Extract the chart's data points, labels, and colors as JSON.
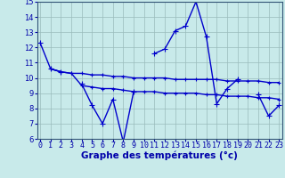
{
  "title": "Graphe des températures (°c)",
  "x_labels": [
    "0",
    "1",
    "2",
    "3",
    "4",
    "5",
    "6",
    "7",
    "8",
    "9",
    "10",
    "11",
    "12",
    "13",
    "14",
    "15",
    "16",
    "17",
    "18",
    "19",
    "20",
    "21",
    "22",
    "23"
  ],
  "line1": [
    12.3,
    10.6,
    10.4,
    null,
    9.6,
    8.2,
    7.0,
    8.6,
    5.8,
    9.1,
    null,
    11.6,
    11.9,
    13.1,
    13.4,
    15.0,
    12.7,
    8.3,
    9.3,
    9.9,
    null,
    8.9,
    7.5,
    8.2
  ],
  "line2": [
    null,
    10.6,
    10.4,
    10.3,
    10.3,
    10.2,
    10.2,
    10.1,
    10.1,
    10.0,
    10.0,
    10.0,
    10.0,
    9.9,
    9.9,
    9.9,
    9.9,
    9.9,
    9.8,
    9.8,
    9.8,
    9.8,
    9.7,
    9.7
  ],
  "line3": [
    null,
    10.6,
    10.4,
    10.3,
    9.5,
    9.4,
    9.3,
    9.3,
    9.2,
    9.1,
    9.1,
    9.1,
    9.0,
    9.0,
    9.0,
    9.0,
    8.9,
    8.9,
    8.8,
    8.8,
    8.8,
    8.7,
    8.7,
    8.6
  ],
  "line_color": "#0000cc",
  "background_color": "#c8eaea",
  "grid_color": "#99bbbb",
  "ylim": [
    6,
    15
  ],
  "yticks": [
    6,
    7,
    8,
    9,
    10,
    11,
    12,
    13,
    14,
    15
  ],
  "xlabel_fontsize": 6.0,
  "ylabel_fontsize": 6.0,
  "title_fontsize": 7.5
}
